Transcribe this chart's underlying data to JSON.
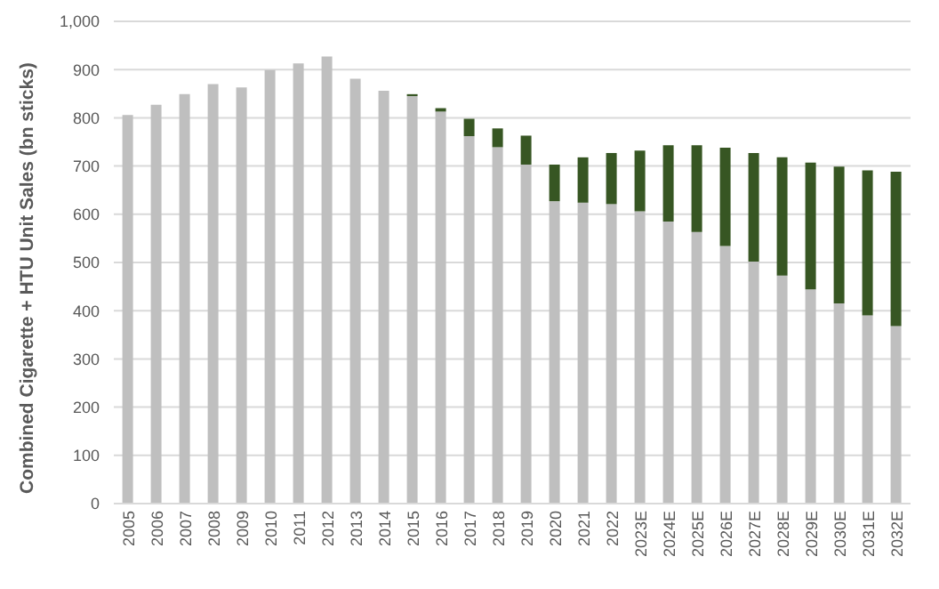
{
  "chart_data": {
    "type": "bar",
    "stacked": true,
    "ylabel": "Combined Cigarette + HTU Unit Sales (bn sticks)",
    "categories": [
      "2005",
      "2006",
      "2007",
      "2008",
      "2009",
      "2010",
      "2011",
      "2012",
      "2013",
      "2014",
      "2015",
      "2016",
      "2017",
      "2018",
      "2019",
      "2020",
      "2021",
      "2022",
      "2023E",
      "2024E",
      "2025E",
      "2026E",
      "2027E",
      "2028E",
      "2029E",
      "2030E",
      "2031E",
      "2032E"
    ],
    "series": [
      {
        "color": "#bfbfbf",
        "values": [
          806,
          827,
          849,
          870,
          863,
          899,
          913,
          927,
          881,
          856,
          845,
          813,
          762,
          739,
          703,
          627,
          624,
          621,
          606,
          585,
          563,
          534,
          502,
          473,
          444,
          415,
          390,
          368
        ]
      },
      {
        "color": "#375623",
        "values": [
          0,
          0,
          0,
          0,
          0,
          0,
          0,
          0,
          0,
          0,
          4,
          7,
          36,
          39,
          60,
          76,
          94,
          106,
          126,
          158,
          180,
          204,
          225,
          245,
          263,
          284,
          301,
          320
        ]
      }
    ],
    "ylim": [
      0,
      1000
    ],
    "yticks": [
      0,
      {
        "value": 100,
        "label": "100"
      },
      200,
      300,
      400,
      500,
      600,
      700,
      800,
      900,
      {
        "value": 1000,
        "label": "1,000"
      }
    ],
    "grid": "y",
    "legend": false
  }
}
